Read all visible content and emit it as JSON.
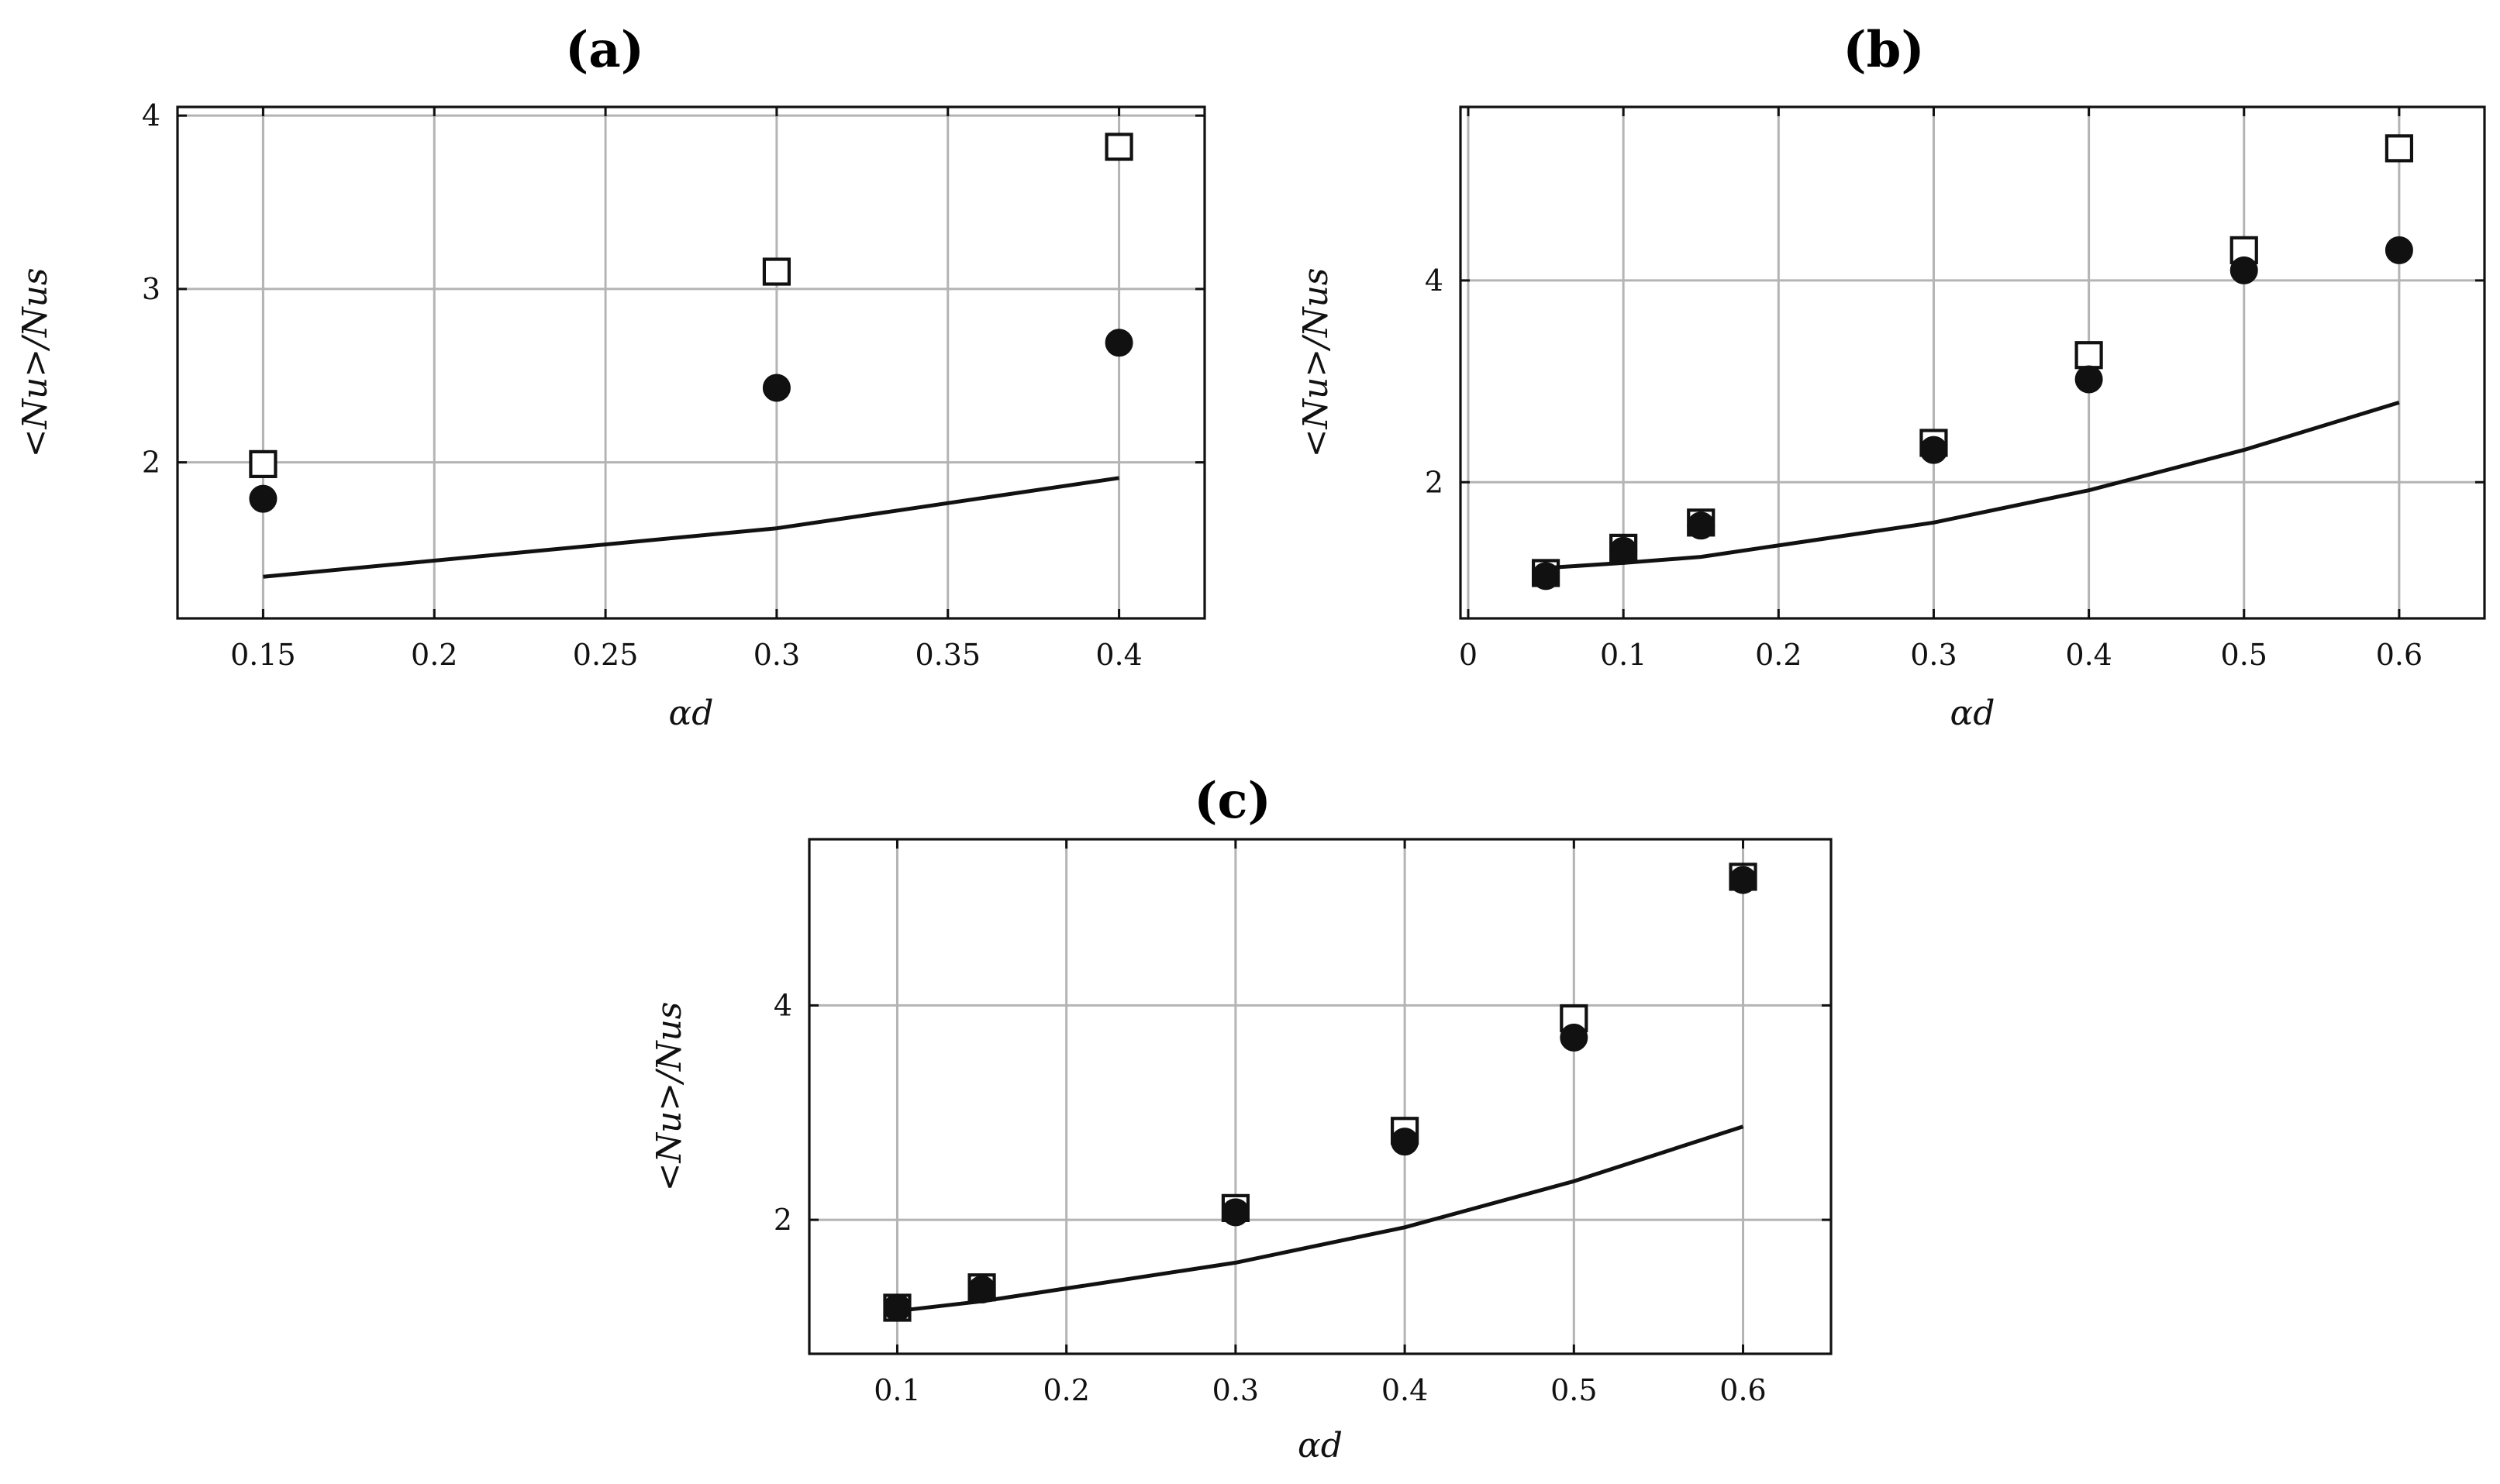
{
  "chart_data": [
    {
      "type": "scatter",
      "title": "(a)",
      "xlabel": "αd",
      "ylabel": "<Nu>/Nus",
      "xlim": [
        0.125,
        0.425
      ],
      "ylim": [
        1.1,
        4.05
      ],
      "xticks": [
        0.15,
        0.2,
        0.25,
        0.3,
        0.35,
        0.4
      ],
      "xtick_labels": [
        "0.15",
        "0.2",
        "0.25",
        "0.3",
        "0.35",
        "0.4"
      ],
      "yticks": [
        2,
        3,
        4
      ],
      "ytick_labels": [
        "2",
        "3",
        "4"
      ],
      "grid": true,
      "series": [
        {
          "name": "open squares",
          "marker": "square-open",
          "x": [
            0.15,
            0.3,
            0.4
          ],
          "y": [
            1.99,
            3.1,
            3.82
          ]
        },
        {
          "name": "filled circles",
          "marker": "circle-filled",
          "x": [
            0.15,
            0.3,
            0.4
          ],
          "y": [
            1.79,
            2.43,
            2.69
          ]
        },
        {
          "name": "line",
          "marker": "line",
          "x": [
            0.15,
            0.3,
            0.4
          ],
          "y": [
            1.34,
            1.62,
            1.91
          ]
        }
      ]
    },
    {
      "type": "scatter",
      "title": "(b)",
      "xlabel": "αd",
      "ylabel": "<Nu>/Nus",
      "xlim": [
        -0.005,
        0.655
      ],
      "ylim": [
        0.65,
        5.72
      ],
      "xticks": [
        0,
        0.1,
        0.2,
        0.3,
        0.4,
        0.5,
        0.6
      ],
      "xtick_labels": [
        "0",
        "0.1",
        "0.2",
        "0.3",
        "0.4",
        "0.5",
        "0.6"
      ],
      "yticks": [
        2,
        4
      ],
      "ytick_labels": [
        "2",
        "4"
      ],
      "grid": true,
      "series": [
        {
          "name": "open squares",
          "marker": "square-open",
          "x": [
            0.05,
            0.1,
            0.15,
            0.3,
            0.4,
            0.5,
            0.6
          ],
          "y": [
            1.1,
            1.35,
            1.6,
            2.39,
            3.26,
            4.3,
            5.31
          ]
        },
        {
          "name": "filled circles",
          "marker": "circle-filled",
          "x": [
            0.05,
            0.1,
            0.15,
            0.3,
            0.4,
            0.5,
            0.6
          ],
          "y": [
            1.07,
            1.32,
            1.57,
            2.32,
            3.02,
            4.1,
            4.3
          ]
        },
        {
          "name": "line",
          "marker": "line",
          "x": [
            0.05,
            0.1,
            0.15,
            0.3,
            0.4,
            0.5,
            0.6
          ],
          "y": [
            1.15,
            1.2,
            1.26,
            1.6,
            1.92,
            2.32,
            2.79
          ]
        }
      ]
    },
    {
      "type": "scatter",
      "title": "(c)",
      "xlabel": "αd",
      "ylabel": "<Nu>/Nus",
      "xlim": [
        0.048,
        0.652
      ],
      "ylim": [
        0.75,
        5.55
      ],
      "xticks": [
        0.1,
        0.2,
        0.3,
        0.4,
        0.5,
        0.6
      ],
      "xtick_labels": [
        "0.1",
        "0.2",
        "0.3",
        "0.4",
        "0.5",
        "0.6"
      ],
      "yticks": [
        2,
        4
      ],
      "ytick_labels": [
        "2",
        "4"
      ],
      "grid": true,
      "series": [
        {
          "name": "open squares",
          "marker": "square-open",
          "x": [
            0.1,
            0.15,
            0.3,
            0.4,
            0.5,
            0.6
          ],
          "y": [
            1.18,
            1.37,
            2.11,
            2.83,
            3.88,
            5.2
          ]
        },
        {
          "name": "filled circles",
          "marker": "circle-filled",
          "x": [
            0.1,
            0.15,
            0.3,
            0.4,
            0.5,
            0.6
          ],
          "y": [
            1.18,
            1.35,
            2.07,
            2.73,
            3.7,
            5.17
          ]
        },
        {
          "name": "line",
          "marker": "line",
          "x": [
            0.1,
            0.15,
            0.3,
            0.4,
            0.5,
            0.6
          ],
          "y": [
            1.15,
            1.24,
            1.6,
            1.93,
            2.36,
            2.87
          ]
        }
      ]
    }
  ]
}
